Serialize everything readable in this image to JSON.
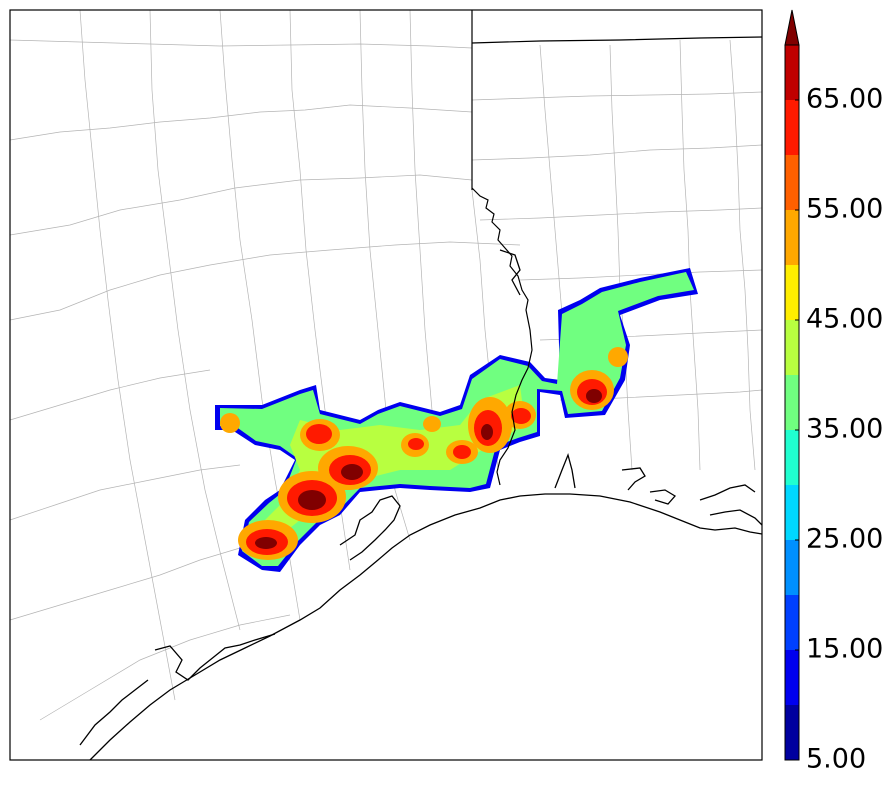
{
  "map": {
    "colorbar": {
      "levels": [
        5,
        10,
        15,
        20,
        25,
        30,
        35,
        40,
        45,
        50,
        55,
        60,
        65,
        70
      ],
      "colors": [
        "#00009f",
        "#0000ef",
        "#0040ff",
        "#0090ff",
        "#00d8ff",
        "#20ffd0",
        "#70ff80",
        "#b8ff40",
        "#ffee00",
        "#ffa800",
        "#ff6000",
        "#ff1a00",
        "#c00000",
        "#800000"
      ],
      "tick_labels": [
        "5.00",
        "15.00",
        "25.00",
        "35.00",
        "45.00",
        "55.00",
        "65.00"
      ],
      "extend": "max"
    },
    "colors": {
      "state_border": "#000000",
      "coastline": "#000000",
      "county_border": "#b4b4b4",
      "background": "#ffffff"
    },
    "features": [
      "precipitation-field",
      "county-borders",
      "state-borders",
      "coastline"
    ]
  }
}
